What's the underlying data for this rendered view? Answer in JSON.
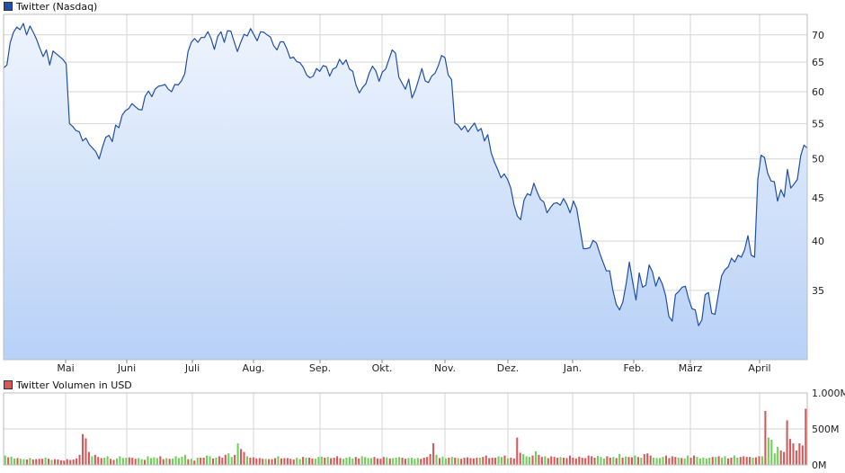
{
  "chart_data": [
    {
      "type": "area",
      "legend": "Twitter (Nasdaq)",
      "line_color": "#1f4fa8",
      "fill_top": "#eef4fd",
      "fill_bottom": "#b8d1f7",
      "x_ticks": [
        "Mai",
        "Juni",
        "Juli",
        "Aug.",
        "Sep.",
        "Okt.",
        "Nov.",
        "Dez.",
        "Jan.",
        "Feb.",
        "März",
        "April"
      ],
      "y_ticks": [
        "70",
        "65",
        "60",
        "55",
        "50",
        "45",
        "40",
        "35"
      ],
      "ylim": [
        29,
        74
      ],
      "y_scale": "log",
      "grid": true,
      "y_axis_position": "right",
      "series": [
        {
          "values": [
            64,
            64.5,
            68.5,
            70.5,
            71.5,
            71,
            72.2,
            70,
            71.7,
            70.5,
            69.2,
            67.5,
            66,
            67.2,
            64.5,
            67,
            66.5,
            66,
            65.5,
            64.7,
            55,
            54.6,
            54,
            53.8,
            52.5,
            52.9,
            52,
            51.5,
            51,
            50,
            51.6,
            53,
            53.3,
            52.4,
            54.8,
            54.4,
            56.3,
            57,
            57.3,
            58.1,
            57.6,
            57.2,
            57.1,
            59.3,
            60.1,
            59.2,
            60.4,
            60.9,
            61,
            61.2,
            60.4,
            60,
            61.2,
            61.1,
            61.8,
            63,
            66.9,
            68.6,
            69.3,
            68.6,
            69.5,
            69.5,
            70.6,
            69.3,
            67.3,
            69.7,
            70.6,
            68.6,
            70.8,
            70.7,
            68.7,
            66.9,
            68.6,
            70.1,
            69.8,
            71.2,
            70,
            68.9,
            70.6,
            70.5,
            70,
            69.6,
            68,
            67.2,
            68.7,
            68.7,
            67.4,
            65.7,
            65.9,
            65.1,
            64.9,
            64.1,
            62.8,
            62.3,
            62.6,
            63.9,
            63.4,
            64.4,
            64.2,
            62.6,
            63.8,
            64.1,
            65.5,
            64.6,
            65.4,
            63.8,
            63.4,
            61.1,
            59.8,
            60.7,
            61.3,
            63.1,
            64.3,
            63.5,
            61.7,
            63.3,
            63.8,
            65.5,
            67.2,
            66.6,
            62.4,
            61.4,
            60.4,
            62.1,
            59,
            60.2,
            62,
            63.9,
            61.8,
            61.5,
            62.6,
            63.1,
            64.4,
            66.2,
            65.8,
            62.8,
            62,
            55.1,
            54.8,
            54.1,
            54.7,
            53.8,
            54.5,
            55.1,
            53.9,
            54.3,
            52.5,
            53.4,
            50.9,
            49.6,
            48.6,
            47.5,
            48,
            47.3,
            46.2,
            44.1,
            42.8,
            42.4,
            44.7,
            45.5,
            45.3,
            46.8,
            45.7,
            44.8,
            44.5,
            43.2,
            43.8,
            44.3,
            44.4,
            44.1,
            44.9,
            44.2,
            43.2,
            44.6,
            43.7,
            41.4,
            39.2,
            39.2,
            39.3,
            40.1,
            39.8,
            38.7,
            37.8,
            36.9,
            36.9,
            35,
            33.7,
            33.2,
            33.9,
            35.6,
            37.8,
            35.8,
            34.1,
            36.7,
            35.3,
            35.5,
            37.5,
            36.8,
            35.4,
            36.3,
            35.6,
            34.5,
            32.6,
            32.2,
            34.6,
            34.9,
            35.3,
            35.4,
            34.2,
            33.3,
            33.2,
            31.8,
            32.3,
            34.6,
            34.8,
            32.9,
            32.8,
            34.6,
            36.4,
            37,
            37.3,
            38.2,
            37.8,
            38.5,
            38.3,
            39.1,
            40.6,
            38.5,
            38.3,
            47.3,
            50.5,
            50.2,
            48.1,
            47.1,
            47,
            44.6,
            46,
            45.1,
            48.6,
            46.2,
            46.7,
            47.3,
            50.4,
            51.9,
            51.5
          ]
        }
      ]
    },
    {
      "type": "bar",
      "legend": "Twitter Volumen in USD",
      "up_color": "#6fcf5a",
      "down_color": "#d45a5a",
      "y_ticks": [
        "1.000M",
        "500M",
        "0M"
      ],
      "ylim": [
        0,
        1000
      ],
      "grid": true,
      "y_axis_position": "right",
      "values": [
        130,
        105,
        115,
        90,
        95,
        85,
        80,
        75,
        95,
        75,
        80,
        85,
        85,
        100,
        85,
        70,
        80,
        75,
        65,
        60,
        80,
        70,
        75,
        90,
        140,
        430,
        370,
        180,
        120,
        140,
        110,
        95,
        100,
        120,
        85,
        70,
        90,
        120,
        95,
        100,
        105,
        100,
        85,
        95,
        80,
        70,
        120,
        95,
        105,
        95,
        120,
        80,
        95,
        85,
        90,
        120,
        95,
        115,
        140,
        80,
        85,
        60,
        100,
        100,
        100,
        130,
        120,
        90,
        100,
        120,
        100,
        140,
        160,
        110,
        140,
        300,
        220,
        180,
        120,
        100,
        105,
        90,
        95,
        85,
        85,
        80,
        80,
        95,
        120,
        90,
        95,
        95,
        85,
        75,
        100,
        80,
        110,
        100,
        100,
        90,
        85,
        110,
        115,
        100,
        110,
        95,
        100,
        120,
        95,
        85,
        100,
        110,
        90,
        110,
        90,
        120,
        110,
        95,
        95,
        110,
        90,
        85,
        110,
        105,
        90,
        95,
        100,
        110,
        100,
        85,
        95,
        100,
        85,
        95,
        85,
        100,
        110,
        150,
        300,
        140,
        95,
        115,
        90,
        100,
        110,
        100,
        95,
        85,
        100,
        105,
        95,
        90,
        100,
        100,
        110,
        130,
        95,
        100,
        100,
        120,
        110,
        130,
        90,
        100,
        90,
        380,
        170,
        150,
        120,
        110,
        130,
        190,
        140,
        110,
        120,
        95,
        120,
        110,
        100,
        110,
        100,
        95,
        130,
        100,
        90,
        115,
        100,
        95,
        130,
        120,
        100,
        125,
        110,
        90,
        120,
        100,
        110,
        95,
        150,
        100,
        115,
        110,
        105,
        130,
        110,
        100,
        150,
        160,
        130,
        100,
        95,
        95,
        110,
        130,
        95,
        120,
        110,
        100,
        95,
        90,
        130,
        100,
        130,
        110,
        90,
        100,
        90,
        100,
        110,
        110,
        120,
        100,
        120,
        90,
        100,
        130,
        100,
        110,
        120,
        110,
        110,
        100,
        105,
        120,
        120,
        750,
        380,
        350,
        160,
        250,
        200,
        180,
        620,
        360,
        300,
        200,
        300,
        270,
        780
      ],
      "up": [
        true,
        false,
        true,
        true,
        false,
        true,
        true,
        false,
        true,
        false,
        false,
        false,
        false,
        true,
        false,
        true,
        false,
        false,
        false,
        false,
        false,
        false,
        false,
        false,
        false,
        false,
        false,
        false,
        true,
        false,
        false,
        false,
        true,
        true,
        false,
        false,
        true,
        true,
        true,
        true,
        false,
        false,
        false,
        true,
        true,
        false,
        true,
        true,
        true,
        true,
        false,
        false,
        true,
        false,
        true,
        true,
        true,
        true,
        true,
        false,
        true,
        false,
        true,
        false,
        false,
        true,
        true,
        false,
        true,
        false,
        false,
        false,
        true,
        true,
        false,
        true,
        false,
        false,
        true,
        false,
        false,
        false,
        false,
        false,
        true,
        false,
        false,
        false,
        true,
        false,
        false,
        false,
        false,
        false,
        true,
        true,
        false,
        true,
        false,
        false,
        true,
        true,
        true,
        false,
        true,
        false,
        false,
        false,
        false,
        true,
        true,
        true,
        true,
        false,
        false,
        true,
        true,
        true,
        true,
        false,
        false,
        false,
        false,
        true,
        false,
        true,
        true,
        true,
        false,
        false,
        true,
        true,
        true,
        true,
        false,
        false,
        false,
        false,
        false,
        true,
        false,
        true,
        true,
        false,
        true,
        false,
        true,
        false,
        false,
        false,
        false,
        false,
        false,
        true,
        false,
        false,
        false,
        false,
        false,
        true,
        true,
        false,
        true,
        false,
        false,
        false,
        false,
        true,
        true,
        true,
        false,
        true,
        false,
        false,
        true,
        false,
        false,
        false,
        false,
        true,
        false,
        false,
        false,
        false,
        false,
        false,
        false,
        false,
        false,
        false,
        false,
        true,
        true,
        true,
        false,
        false,
        true,
        false,
        true,
        false,
        true,
        false,
        false,
        true,
        false,
        true,
        false,
        false,
        false,
        true,
        true,
        true,
        true,
        false,
        false,
        false,
        false,
        true,
        false,
        true,
        true,
        false,
        false,
        true,
        true,
        true,
        true,
        true,
        false,
        true,
        false,
        true,
        true,
        false,
        false,
        true,
        true,
        false,
        false,
        false,
        false,
        true,
        false,
        false,
        true,
        false,
        true,
        true,
        true,
        true,
        false
      ]
    }
  ]
}
